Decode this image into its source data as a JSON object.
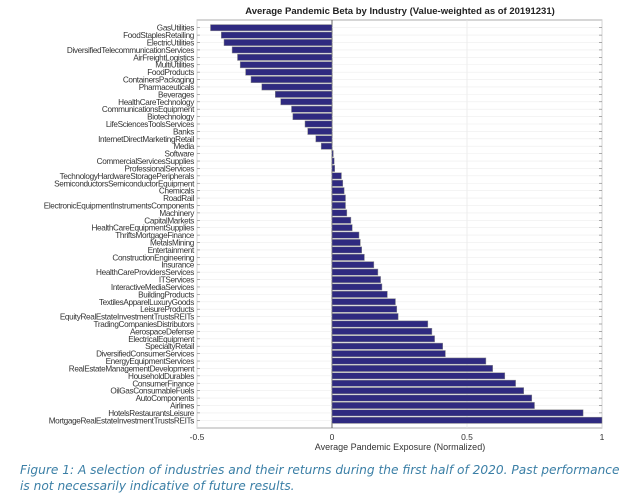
{
  "chart_data": {
    "type": "bar",
    "orientation": "horizontal",
    "title": "Average Pandemic Beta by Industry (Value-weighted as of 20191231)",
    "xlabel": "Average Pandemic Exposure (Normalized)",
    "ylabel": "",
    "xlim": [
      -0.5,
      1
    ],
    "xticks": [
      -0.5,
      0,
      0.5,
      1
    ],
    "xtick_labels": [
      "-0.5",
      "0",
      "0.5",
      "1"
    ],
    "grid": true,
    "bar_color": "#2f2a80",
    "categories": [
      "GasUtilities",
      "FoodStaplesRetailing",
      "ElectricUtilities",
      "DiversifiedTelecommunicationServices",
      "AirFreightLogistics",
      "MultiUtilities",
      "FoodProducts",
      "ContainersPackaging",
      "Pharmaceuticals",
      "Beverages",
      "HealthCareTechnology",
      "CommunicationsEquipment",
      "Biotechnology",
      "LifeSciencesToolsServices",
      "Banks",
      "InternetDirectMarketingRetail",
      "Media",
      "Software",
      "CommercialServicesSupplies",
      "ProfessionalServices",
      "TechnologyHardwareStoragePeripherals",
      "SemiconductorsSemiconductorEquipment",
      "Chemicals",
      "RoadRail",
      "ElectronicEquipmentInstrumentsComponents",
      "Machinery",
      "CapitalMarkets",
      "HealthCareEquipmentSupplies",
      "ThriftsMortgageFinance",
      "MetalsMining",
      "Entertainment",
      "ConstructionEngineering",
      "Insurance",
      "HealthCareProvidersServices",
      "ITServices",
      "InteractiveMediaServices",
      "BuildingProducts",
      "TextilesApparelLuxuryGoods",
      "LeisureProducts",
      "EquityRealEstateInvestmentTrustsREITs",
      "TradingCompaniesDistributors",
      "AerospaceDefense",
      "ElectricalEquipment",
      "SpecialtyRetail",
      "DiversifiedConsumerServices",
      "EnergyEquipmentServices",
      "RealEstateManagementDevelopment",
      "HouseholdDurables",
      "ConsumerFinance",
      "OilGasConsumableFuels",
      "AutoComponents",
      "Airlines",
      "HotelsRestaurantsLeisure",
      "MortgageRealEstateInvestmentTrustsREITs"
    ],
    "values": [
      -0.45,
      -0.41,
      -0.4,
      -0.37,
      -0.35,
      -0.34,
      -0.32,
      -0.3,
      -0.26,
      -0.21,
      -0.19,
      -0.15,
      -0.145,
      -0.1,
      -0.09,
      -0.06,
      -0.04,
      0.005,
      0.008,
      0.01,
      0.035,
      0.04,
      0.045,
      0.05,
      0.05,
      0.055,
      0.07,
      0.075,
      0.1,
      0.105,
      0.11,
      0.12,
      0.155,
      0.17,
      0.18,
      0.185,
      0.205,
      0.235,
      0.24,
      0.245,
      0.355,
      0.37,
      0.38,
      0.41,
      0.42,
      0.57,
      0.595,
      0.64,
      0.68,
      0.71,
      0.74,
      0.75,
      0.93,
      1.0
    ]
  },
  "caption": "Figure 1: A selection of industries and their returns during the first half of 2020. Past performance is not necessarily indicative of future results."
}
